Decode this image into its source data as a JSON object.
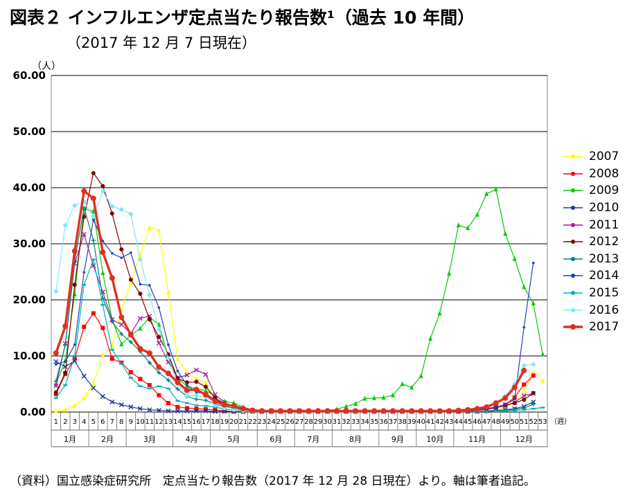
{
  "header": {
    "title": "図表２ インフルエンザ定点当たり報告数¹（過去 10 年間）",
    "subtitle": "（2017 年 12 月 7 日現在）"
  },
  "footer": {
    "source": "（資料）国立感染症研究所　定点当たり報告数（2017 年 12 月 28 日現在）より。軸は筆者追記。"
  },
  "chart_data": {
    "type": "line",
    "ylabel": "（人）",
    "xunit": "（週）",
    "ylim": [
      0,
      60
    ],
    "yticks": [
      "0.00",
      "10.00",
      "20.00",
      "30.00",
      "40.00",
      "50.00",
      "60.00"
    ],
    "weeks": [
      "1",
      "2",
      "3",
      "4",
      "5",
      "6",
      "7",
      "8",
      "9",
      "10",
      "11",
      "12",
      "13",
      "14",
      "15",
      "16",
      "17",
      "18",
      "19",
      "20",
      "21",
      "22",
      "23",
      "24",
      "25",
      "26",
      "27",
      "28",
      "29",
      "30",
      "31",
      "32",
      "33",
      "34",
      "35",
      "36",
      "37",
      "38",
      "39",
      "40",
      "41",
      "42",
      "43",
      "44",
      "45",
      "46",
      "47",
      "48",
      "49",
      "50",
      "51",
      "52",
      "53"
    ],
    "months": [
      {
        "label": "1月",
        "start": 1,
        "end": 4
      },
      {
        "label": "2月",
        "start": 5,
        "end": 8
      },
      {
        "label": "3月",
        "start": 9,
        "end": 13
      },
      {
        "label": "4月",
        "start": 14,
        "end": 17
      },
      {
        "label": "5月",
        "start": 18,
        "end": 22
      },
      {
        "label": "6月",
        "start": 23,
        "end": 26
      },
      {
        "label": "7月",
        "start": 27,
        "end": 30
      },
      {
        "label": "8月",
        "start": 31,
        "end": 35
      },
      {
        "label": "9月",
        "start": 36,
        "end": 39
      },
      {
        "label": "10月",
        "start": 40,
        "end": 43
      },
      {
        "label": "11月",
        "start": 44,
        "end": 48
      },
      {
        "label": "12月",
        "start": 49,
        "end": 53
      }
    ],
    "grid": true,
    "legend_position": "right",
    "series": [
      {
        "name": "2007",
        "color": "#ffff00",
        "marker": "triangle",
        "values": [
          0.2,
          0.4,
          1.1,
          2.5,
          5.2,
          10.1,
          11.8,
          18.2,
          23.1,
          28.0,
          32.9,
          32.4,
          21.3,
          9.5,
          7.0,
          6.0,
          5.2,
          2.5,
          1.4,
          0.8,
          0.4,
          0.2,
          0.1,
          0.1,
          0.1,
          0.1,
          0.1,
          0.1,
          0.1,
          0.1,
          0.1,
          0.1,
          0.1,
          0.1,
          0.1,
          0.1,
          0.1,
          0.1,
          0.1,
          0.1,
          0.1,
          0.1,
          0.1,
          0.1,
          0.1,
          0.1,
          0.2,
          0.3,
          0.8,
          1.8,
          3.5,
          7.1,
          5.5
        ]
      },
      {
        "name": "2008",
        "color": "#ff0000",
        "marker": "square",
        "values": [
          3.2,
          6.8,
          9.5,
          15.2,
          17.6,
          15.0,
          9.5,
          8.8,
          7.1,
          5.9,
          4.8,
          3.0,
          1.6,
          0.9,
          0.7,
          0.6,
          0.5,
          0.4,
          0.2,
          0.1,
          0.1,
          0.1,
          0.1,
          0.1,
          0.1,
          0.1,
          0.1,
          0.1,
          0.1,
          0.1,
          0.1,
          0.1,
          0.1,
          0.1,
          0.1,
          0.1,
          0.1,
          0.1,
          0.1,
          0.1,
          0.1,
          0.1,
          0.1,
          0.1,
          0.2,
          0.3,
          0.5,
          0.7,
          1.3,
          2.6,
          4.9,
          6.5,
          null
        ]
      },
      {
        "name": "2009",
        "color": "#00cc00",
        "marker": "triangle",
        "values": [
          5.0,
          9.2,
          21.0,
          36.3,
          35.8,
          24.8,
          16.5,
          12.1,
          13.7,
          14.9,
          16.9,
          15.6,
          9.7,
          6.0,
          4.6,
          4.2,
          3.8,
          2.9,
          1.9,
          1.6,
          0.9,
          0.4,
          0.2,
          0.2,
          0.2,
          0.2,
          0.2,
          0.2,
          0.3,
          0.3,
          0.5,
          1.0,
          1.5,
          2.4,
          2.5,
          2.6,
          3.0,
          5.0,
          4.4,
          6.4,
          13.1,
          17.6,
          24.7,
          33.3,
          32.8,
          35.2,
          38.9,
          39.7,
          31.8,
          27.3,
          22.3,
          19.4,
          10.3
        ]
      },
      {
        "name": "2010",
        "color": "#1f3a93",
        "marker": "x",
        "values": [
          9.0,
          8.1,
          9.1,
          6.4,
          4.3,
          2.8,
          1.8,
          1.3,
          0.9,
          0.6,
          0.4,
          0.3,
          0.2,
          0.2,
          0.2,
          0.2,
          0.2,
          0.1,
          0.1,
          0.1,
          0.1,
          0.1,
          0.1,
          0.1,
          0.1,
          0.1,
          0.1,
          0.1,
          0.1,
          0.1,
          0.1,
          0.1,
          0.1,
          0.1,
          0.1,
          0.1,
          0.1,
          0.1,
          0.1,
          0.1,
          0.1,
          0.1,
          0.1,
          0.1,
          0.1,
          0.1,
          0.2,
          0.3,
          0.4,
          0.6,
          1.0,
          1.8,
          null
        ]
      },
      {
        "name": "2011",
        "color": "#a020a0",
        "marker": "x",
        "values": [
          4.7,
          12.2,
          26.5,
          31.7,
          26.1,
          21.4,
          16.5,
          15.6,
          14.0,
          16.7,
          17.1,
          12.3,
          8.9,
          6.1,
          6.6,
          7.5,
          6.7,
          3.1,
          1.7,
          1.0,
          0.5,
          0.3,
          0.2,
          0.2,
          0.2,
          0.2,
          0.2,
          0.1,
          0.1,
          0.1,
          0.1,
          0.1,
          0.1,
          0.1,
          0.1,
          0.1,
          0.1,
          0.1,
          0.1,
          0.1,
          0.1,
          0.1,
          0.1,
          0.1,
          0.2,
          0.3,
          0.5,
          0.8,
          1.1,
          1.7,
          2.9,
          3.3,
          null
        ]
      },
      {
        "name": "2012",
        "color": "#800000",
        "marker": "circle",
        "values": [
          3.5,
          7.0,
          22.7,
          34.8,
          42.6,
          40.3,
          35.4,
          29.0,
          23.6,
          21.1,
          16.5,
          13.4,
          10.3,
          6.0,
          5.3,
          5.4,
          4.5,
          2.5,
          1.5,
          1.1,
          0.6,
          0.4,
          0.2,
          0.2,
          0.1,
          0.1,
          0.1,
          0.1,
          0.1,
          0.1,
          0.1,
          0.1,
          0.1,
          0.1,
          0.1,
          0.1,
          0.1,
          0.1,
          0.1,
          0.1,
          0.1,
          0.1,
          0.1,
          0.1,
          0.2,
          0.4,
          0.6,
          0.9,
          1.2,
          1.6,
          2.2,
          3.4,
          null
        ]
      },
      {
        "name": "2013",
        "color": "#008080",
        "marker": "plus",
        "values": [
          5.5,
          12.0,
          27.0,
          36.4,
          30.6,
          20.3,
          16.1,
          13.9,
          12.5,
          10.8,
          8.8,
          7.0,
          5.7,
          4.1,
          2.8,
          2.3,
          2.1,
          1.4,
          1.0,
          0.7,
          0.4,
          0.2,
          0.1,
          0.1,
          0.1,
          0.1,
          0.1,
          0.1,
          0.1,
          0.1,
          0.1,
          0.1,
          0.1,
          0.1,
          0.1,
          0.1,
          0.1,
          0.1,
          0.1,
          0.1,
          0.1,
          0.1,
          0.1,
          0.1,
          0.1,
          0.1,
          0.1,
          0.2,
          0.3,
          0.5,
          0.7,
          1.4,
          null
        ]
      },
      {
        "name": "2014",
        "color": "#2040c0",
        "marker": "dot",
        "values": [
          8.5,
          9.0,
          12.0,
          24.9,
          34.3,
          30.5,
          28.3,
          27.5,
          28.4,
          22.8,
          22.6,
          18.6,
          12.0,
          7.3,
          4.8,
          3.5,
          3.3,
          2.2,
          1.5,
          1.0,
          0.6,
          0.3,
          0.2,
          0.2,
          0.2,
          0.1,
          0.1,
          0.1,
          0.1,
          0.1,
          0.1,
          0.1,
          0.1,
          0.1,
          0.1,
          0.1,
          0.1,
          0.1,
          0.1,
          0.1,
          0.1,
          0.1,
          0.1,
          0.2,
          0.3,
          0.4,
          0.6,
          0.9,
          1.3,
          2.3,
          15.1,
          26.6,
          null
        ]
      },
      {
        "name": "2015",
        "color": "#00b0b0",
        "marker": "dash",
        "values": [
          2.5,
          4.8,
          10.0,
          22.7,
          27.2,
          19.1,
          11.1,
          8.6,
          6.1,
          4.6,
          4.2,
          4.6,
          4.2,
          2.0,
          1.6,
          1.2,
          1.1,
          0.9,
          0.5,
          0.4,
          0.3,
          0.2,
          0.1,
          0.1,
          0.1,
          0.1,
          0.1,
          0.1,
          0.1,
          0.1,
          0.1,
          0.1,
          0.1,
          0.1,
          0.1,
          0.1,
          0.1,
          0.1,
          0.1,
          0.1,
          0.1,
          0.1,
          0.1,
          0.1,
          0.1,
          0.1,
          0.1,
          0.2,
          0.2,
          0.3,
          0.4,
          0.6,
          0.8
        ]
      },
      {
        "name": "2016",
        "color": "#80e8f8",
        "marker": "circle",
        "values": [
          21.5,
          33.3,
          36.8,
          37.5,
          34.8,
          39.4,
          36.7,
          36.1,
          35.3,
          27.2,
          20.9,
          14.7,
          9.6,
          5.0,
          3.0,
          2.9,
          2.7,
          1.2,
          0.7,
          0.4,
          0.2,
          0.1,
          0.1,
          0.1,
          0.1,
          0.1,
          0.1,
          0.1,
          0.1,
          0.1,
          0.1,
          0.1,
          0.1,
          0.1,
          0.1,
          0.1,
          0.1,
          0.1,
          0.1,
          0.1,
          0.1,
          0.1,
          0.1,
          0.2,
          0.3,
          0.6,
          0.9,
          1.5,
          2.8,
          5.0,
          8.3,
          8.5,
          null
        ]
      },
      {
        "name": "2017",
        "color": "#e03020",
        "marker": "circle",
        "bold": true,
        "values": [
          10.5,
          15.3,
          28.7,
          39.4,
          38.1,
          28.5,
          23.9,
          16.9,
          13.8,
          11.3,
          10.5,
          8.0,
          6.9,
          5.3,
          3.9,
          4.0,
          3.1,
          1.9,
          1.3,
          1.1,
          0.6,
          0.3,
          0.2,
          0.2,
          0.2,
          0.2,
          0.2,
          0.2,
          0.2,
          0.2,
          0.2,
          0.2,
          0.2,
          0.2,
          0.2,
          0.2,
          0.2,
          0.2,
          0.2,
          0.2,
          0.2,
          0.2,
          0.2,
          0.3,
          0.4,
          0.6,
          0.9,
          1.6,
          2.5,
          4.4,
          7.4,
          null,
          null
        ]
      }
    ]
  }
}
